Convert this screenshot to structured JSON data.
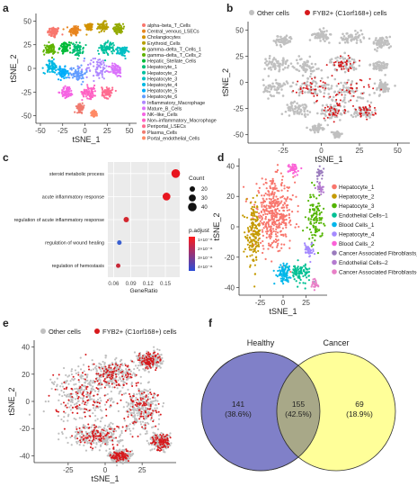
{
  "panels": {
    "a": "a",
    "b": "b",
    "c": "c",
    "d": "d",
    "e": "e",
    "f": "f"
  },
  "colors": {
    "other_cells": "#c0c0c0",
    "fyb2": "#d7191c",
    "venn_healthy": "#8080c8",
    "venn_cancer": "#ffff99",
    "venn_overlap": "#a8a888"
  },
  "chart_data": [
    {
      "id": "a",
      "type": "scatter",
      "xlabel": "tSNE_1",
      "ylabel": "tSNE_2",
      "xticks": [
        -50,
        -25,
        0,
        25,
        50
      ],
      "yticks": [
        -50,
        -25,
        0,
        25,
        50
      ],
      "xlim": [
        -55,
        58
      ],
      "ylim": [
        -58,
        58
      ],
      "legend": [
        {
          "name": "alpha–beta_T_Cells",
          "color": "#f8766d"
        },
        {
          "name": "Central_venous_LSECs",
          "color": "#e8851e"
        },
        {
          "name": "Cholangiocytes",
          "color": "#d39200"
        },
        {
          "name": "Erythroid_Cells",
          "color": "#b79f00"
        },
        {
          "name": "gamma–delta_T_Cells_1",
          "color": "#93aa00"
        },
        {
          "name": "gamma–delta_T_Cells_2",
          "color": "#5eb300"
        },
        {
          "name": "Hepatic_Stellate_Cells",
          "color": "#00ba38"
        },
        {
          "name": "Hepatocyte_1",
          "color": "#00bf74"
        },
        {
          "name": "Hepatocyte_2",
          "color": "#00c19f"
        },
        {
          "name": "Hepatocyte_3",
          "color": "#00bfc4"
        },
        {
          "name": "Hepatocyte_4",
          "color": "#00b9e3"
        },
        {
          "name": "Hepatocyte_5",
          "color": "#00adfa"
        },
        {
          "name": "Hepatocyte_6",
          "color": "#619cff"
        },
        {
          "name": "Inflammatory_Macrophage",
          "color": "#ae87ff"
        },
        {
          "name": "Mature_B_Cells",
          "color": "#db72fb"
        },
        {
          "name": "NK–like_Cells",
          "color": "#f564e3"
        },
        {
          "name": "Non–inflammatory_Macrophage",
          "color": "#ff61c3"
        },
        {
          "name": "Periportal_LSECs",
          "color": "#ff6c91"
        },
        {
          "name": "Plasma_Cells",
          "color": "#f07a6f"
        },
        {
          "name": "Portal_endothelial_Cells",
          "color": "#ff8a65"
        }
      ]
    },
    {
      "id": "b",
      "type": "scatter",
      "xlabel": "tSNE_1",
      "ylabel": "tSNE_2",
      "xticks": [
        -25,
        0,
        25,
        50
      ],
      "yticks": [
        -50,
        -25,
        0,
        25,
        50
      ],
      "xlim": [
        -48,
        58
      ],
      "ylim": [
        -58,
        58
      ],
      "legend": [
        {
          "name": "Other cells",
          "color": "#c0c0c0"
        },
        {
          "name": "FYB2+ (C1orf168+) cells",
          "color": "#d7191c"
        }
      ]
    },
    {
      "id": "c",
      "type": "scatter",
      "xlabel": "GeneRatio",
      "ylabel": "",
      "xticks": [
        0.06,
        0.09,
        0.12,
        0.15
      ],
      "xlim": [
        0.05,
        0.175
      ],
      "terms": [
        {
          "term": "steroid metabolic process",
          "gene_ratio": 0.168,
          "count": 40,
          "color": "#e8141e"
        },
        {
          "term": "acute inflammatory response",
          "gene_ratio": 0.152,
          "count": 35,
          "color": "#e81620"
        },
        {
          "term": "regulation of acute inflammatory response",
          "gene_ratio": 0.082,
          "count": 20,
          "color": "#d3262e"
        },
        {
          "term": "regulation of wound healing",
          "gene_ratio": 0.07,
          "count": 15,
          "color": "#3a5fd0"
        },
        {
          "term": "regulation of hemostasis",
          "gene_ratio": 0.068,
          "count": 14,
          "color": "#c82838"
        }
      ],
      "size_legend": {
        "title": "Count",
        "values": [
          20,
          30,
          40
        ]
      },
      "color_legend": {
        "title": "p.adjust",
        "labels": [
          "1×10⁻¹¹",
          "2×10⁻¹¹",
          "3×10⁻¹¹",
          "4×10⁻¹¹"
        ]
      }
    },
    {
      "id": "d",
      "type": "scatter",
      "xlabel": "tSNE_1",
      "ylabel": "tSNE_2",
      "xticks": [
        -25,
        0,
        25
      ],
      "yticks": [
        -40,
        -20,
        0,
        20,
        40
      ],
      "xlim": [
        -48,
        48
      ],
      "ylim": [
        -45,
        45
      ],
      "legend": [
        {
          "name": "Hepatocyte_1",
          "color": "#f8766d"
        },
        {
          "name": "Hepatocyte_2",
          "color": "#c49a00"
        },
        {
          "name": "Hepatocyte_3",
          "color": "#53b400"
        },
        {
          "name": "Endothelial Cells–1",
          "color": "#00c094"
        },
        {
          "name": "Blood Cells_1",
          "color": "#00b6eb"
        },
        {
          "name": "Hepatocyte_4",
          "color": "#a58aff"
        },
        {
          "name": "Blood Cells_2",
          "color": "#fb61d7"
        },
        {
          "name": "Cancer Associated Fibroblasts_1",
          "color": "#9a7bbd"
        },
        {
          "name": "Endothelial Cells–2",
          "color": "#b47bd0"
        },
        {
          "name": "Cancer Associated Fibroblasts–2",
          "color": "#e87fc7"
        }
      ]
    },
    {
      "id": "e",
      "type": "scatter",
      "xlabel": "tSNE_1",
      "ylabel": "tSNE_2",
      "xticks": [
        -25,
        0,
        25
      ],
      "yticks": [
        -40,
        -20,
        0,
        20,
        40
      ],
      "xlim": [
        -48,
        48
      ],
      "ylim": [
        -45,
        45
      ],
      "legend": [
        {
          "name": "Other cells",
          "color": "#c0c0c0"
        },
        {
          "name": "FYB2+ (C1orf168+) cells",
          "color": "#d7191c"
        }
      ]
    },
    {
      "id": "f",
      "type": "venn",
      "sets": [
        {
          "name": "Healthy",
          "only": 141,
          "only_pct": "(38.6%)"
        },
        {
          "name": "Cancer",
          "only": 69,
          "only_pct": "(18.9%)"
        }
      ],
      "overlap": 155,
      "overlap_pct": "(42.5%)"
    }
  ]
}
